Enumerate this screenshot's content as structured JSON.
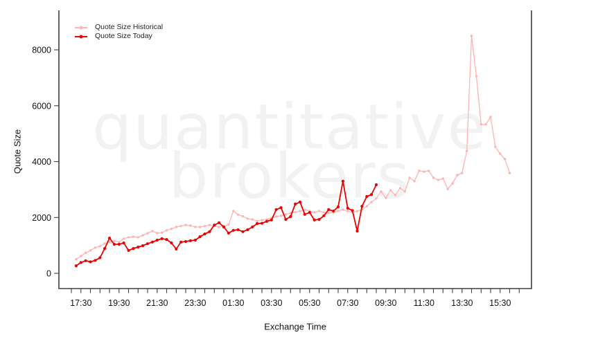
{
  "watermark": {
    "line1": "quantitative",
    "line2": "brokers",
    "color": "#f2f2f2"
  },
  "colors": {
    "axis": "#3f3f3f",
    "tick_text": "#111111",
    "background": "#ffffff"
  },
  "chart_data": {
    "type": "line",
    "title": "",
    "xlabel": "Exchange Time",
    "ylabel": "Quote Size",
    "grid": false,
    "legend_position": "top-left",
    "x_axis": {
      "tick_interval_minutes": 30,
      "first_tick": "17:00",
      "last_tick": "16:30",
      "labels": [
        "17:30",
        "19:30",
        "21:30",
        "23:30",
        "01:30",
        "03:30",
        "05:30",
        "07:30",
        "09:30",
        "11:30",
        "13:30",
        "15:30"
      ],
      "label_minutes": [
        30,
        150,
        270,
        390,
        510,
        630,
        750,
        870,
        990,
        1110,
        1230,
        1350
      ]
    },
    "y_axis": {
      "ticks": [
        0,
        2000,
        4000,
        6000,
        8000
      ],
      "range": [
        0,
        8600
      ]
    },
    "series": [
      {
        "name": "Quote Size Historical",
        "color": "#ffb3b3",
        "start": "17:15",
        "start_minutes": 15,
        "step_minutes": 15,
        "values": [
          500,
          620,
          730,
          820,
          920,
          970,
          1070,
          1120,
          1160,
          1120,
          1240,
          1290,
          1310,
          1290,
          1360,
          1440,
          1510,
          1440,
          1460,
          1540,
          1590,
          1660,
          1690,
          1730,
          1710,
          1660,
          1660,
          1690,
          1730,
          1690,
          1660,
          1690,
          1740,
          2230,
          2100,
          2040,
          1960,
          1930,
          1870,
          1910,
          1930,
          1980,
          2030,
          2060,
          2110,
          2160,
          2190,
          2230,
          2280,
          2230,
          2180,
          2230,
          2180,
          2160,
          2180,
          2230,
          2280,
          2230,
          2180,
          2230,
          2280,
          2400,
          2550,
          2680,
          2930,
          2700,
          2970,
          2800,
          3050,
          2930,
          3420,
          3300,
          3670,
          3640,
          3670,
          3420,
          3340,
          3390,
          3020,
          3220,
          3515,
          3590,
          4380,
          8500,
          7060,
          5330,
          5330,
          5600,
          4530,
          4280,
          4090,
          3590
        ]
      },
      {
        "name": "Quote Size Today",
        "color": "#ee0000",
        "start": "17:15",
        "start_minutes": 15,
        "step_minutes": 15,
        "values": [
          270,
          390,
          450,
          410,
          460,
          560,
          890,
          1260,
          1040,
          1040,
          1090,
          820,
          890,
          940,
          990,
          1060,
          1120,
          1190,
          1240,
          1210,
          1090,
          870,
          1120,
          1140,
          1170,
          1190,
          1310,
          1410,
          1490,
          1730,
          1810,
          1660,
          1440,
          1540,
          1560,
          1490,
          1560,
          1660,
          1780,
          1790,
          1860,
          1910,
          2280,
          2350,
          1930,
          2030,
          2480,
          2550,
          2110,
          2180,
          1910,
          1930,
          2060,
          2280,
          2230,
          2380,
          3300,
          2330,
          2250,
          1510,
          2400,
          2750,
          2820,
          3170
        ]
      }
    ]
  }
}
